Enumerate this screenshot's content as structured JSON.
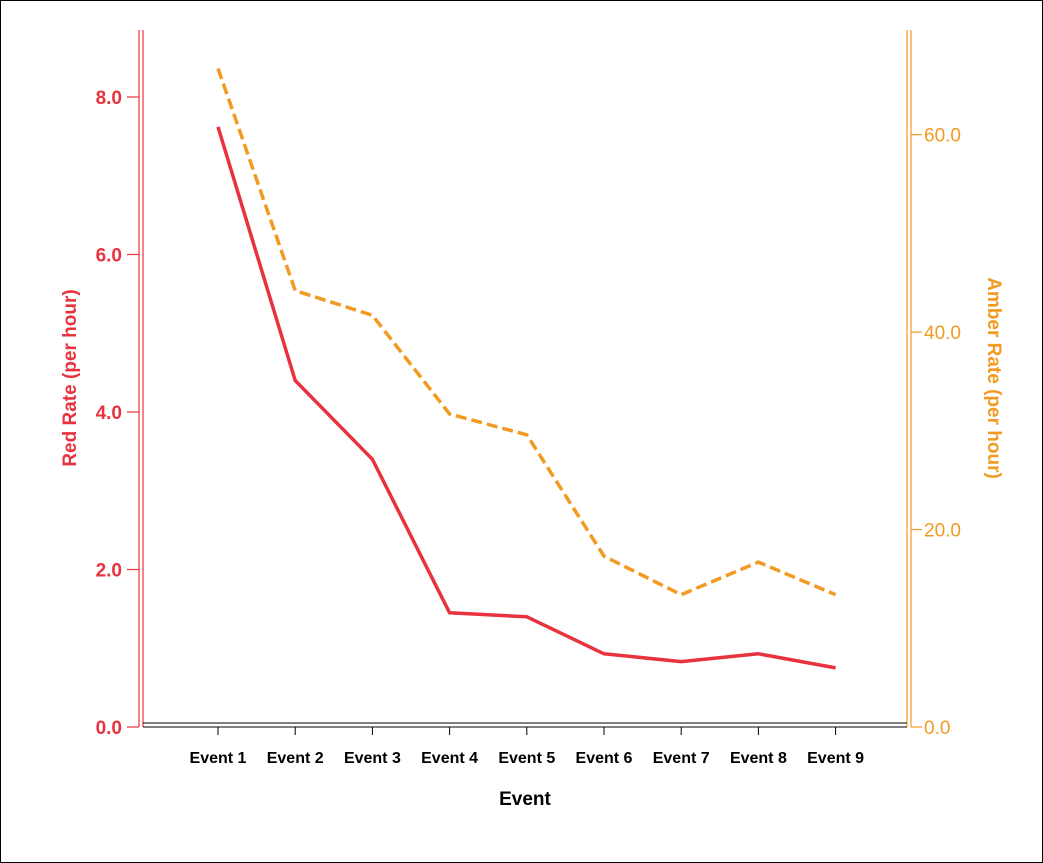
{
  "chart_data": {
    "type": "line",
    "categories": [
      "Event 1",
      "Event 2",
      "Event 3",
      "Event 4",
      "Event 5",
      "Event 6",
      "Event 7",
      "Event 8",
      "Event 9"
    ],
    "series": [
      {
        "name": "Red Rate (per hour)",
        "axis": "left",
        "color": "#e8333f",
        "style": "solid",
        "values": [
          7.62,
          4.4,
          3.4,
          1.45,
          1.4,
          0.93,
          0.83,
          0.93,
          0.75
        ]
      },
      {
        "name": "Amber Rate (per hour)",
        "axis": "right",
        "color": "#f29a22",
        "style": "dashed",
        "values": [
          66.7,
          44.2,
          41.7,
          31.7,
          29.6,
          17.3,
          13.4,
          16.7,
          13.4
        ]
      }
    ],
    "xlabel": "Event",
    "ylabel_left": "Red Rate (per hour)",
    "ylabel_right": "Amber Rate (per hour)",
    "ylim_left": [
      0,
      8
    ],
    "ylim_right": [
      0,
      70.6
    ],
    "yticks_left": [
      "0.0",
      "2.0",
      "4.0",
      "6.0",
      "8.0"
    ],
    "yticks_right": [
      "0.0",
      "20.0",
      "40.0",
      "60.0"
    ],
    "grid": false,
    "legend": "none"
  }
}
